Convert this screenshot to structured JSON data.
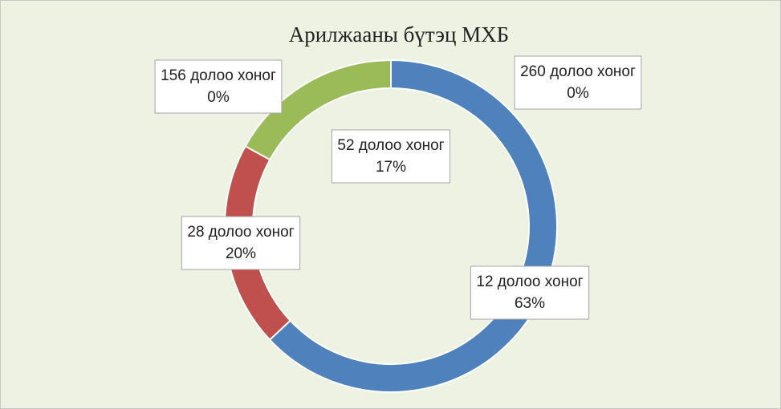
{
  "chart_data": {
    "type": "donut",
    "title": "Арилжааны бүтэц МХБ",
    "categories": [
      "12 долоо хоног",
      "28 долоо хоног",
      "52 долоо хоног",
      "156 долоо хоног",
      "260 долоо хоног"
    ],
    "values": [
      63,
      20,
      17,
      0,
      0
    ],
    "value_labels": [
      "63%",
      "20%",
      "17%",
      "0%",
      "0%"
    ],
    "colors": [
      "#4f81bd",
      "#c0504d",
      "#9bbb59",
      "#8064a2",
      "#4bacc6"
    ]
  }
}
